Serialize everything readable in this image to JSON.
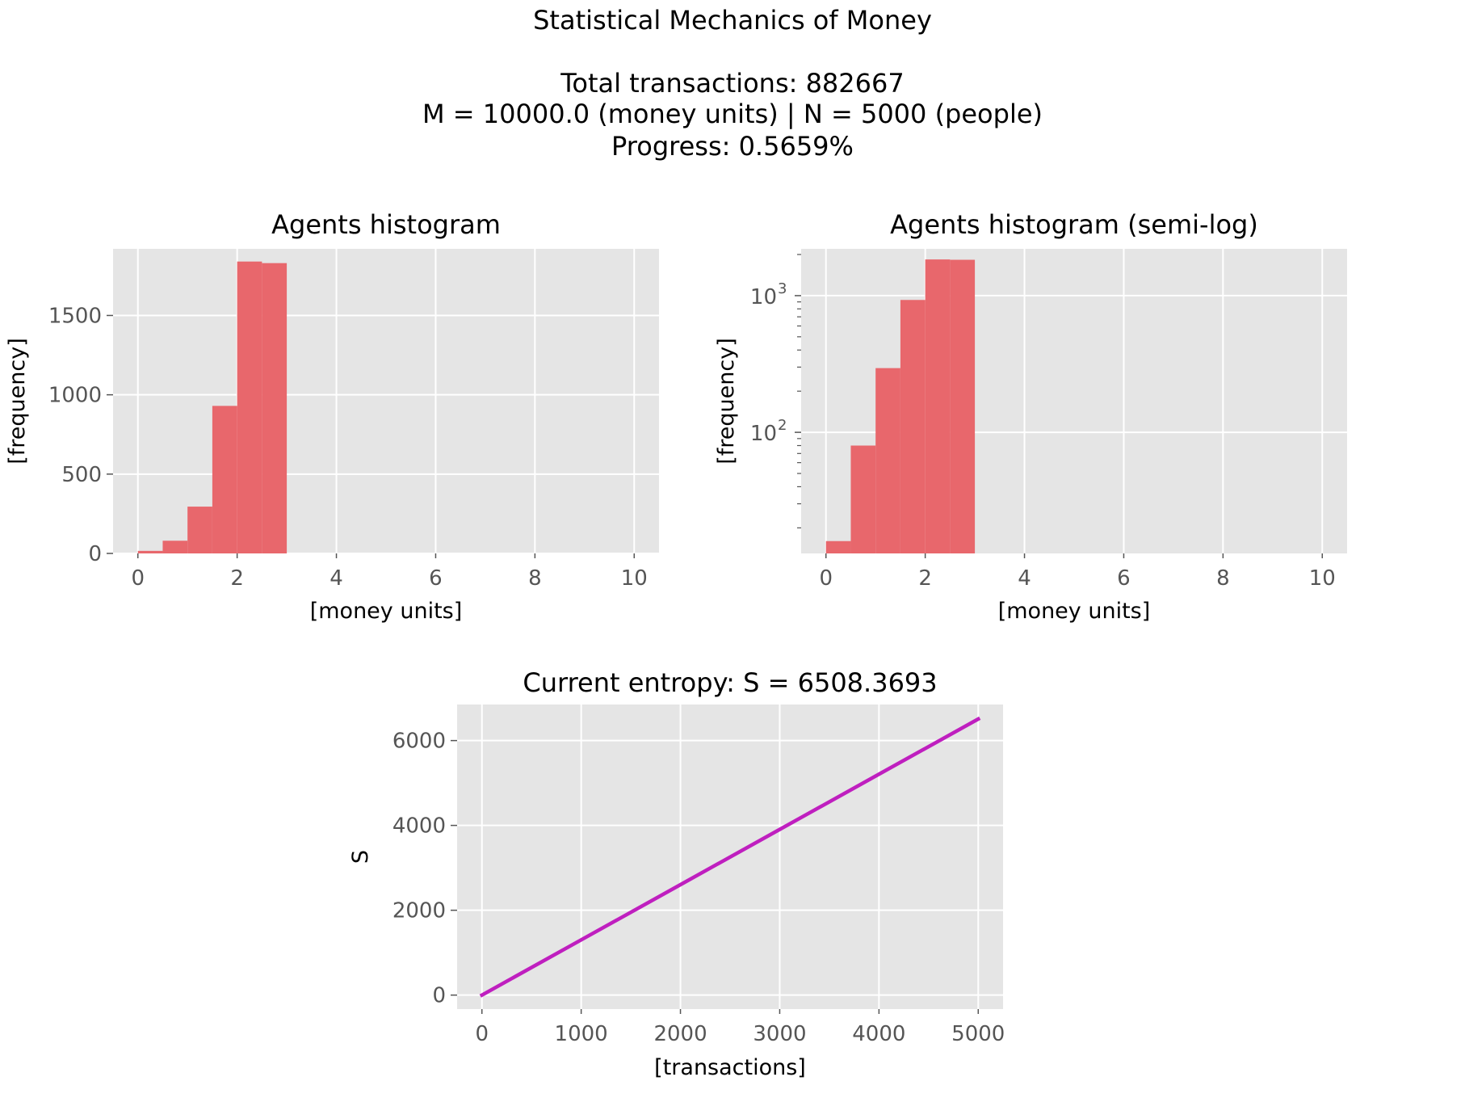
{
  "figure": {
    "suptitle_lines": [
      "Statistical Mechanics of Money",
      "",
      "Total transactions: 882667",
      "M = 10000.0 (money units)   |    N = 5000 (people)",
      "Progress: 0.5659%"
    ]
  },
  "colors": {
    "axes_background": "#e5e5e5",
    "grid": "#ffffff",
    "bar": "#e8676c",
    "line": "#bf1fbf",
    "tick_text": "#555555"
  },
  "chart_data": [
    {
      "id": "hist-linear",
      "type": "bar",
      "title": "Agents histogram",
      "xlabel": "[money units]",
      "ylabel": "[frequency]",
      "xlim": [
        -0.5,
        10.5
      ],
      "ylim": [
        0,
        1920
      ],
      "xticks": [
        0,
        2,
        4,
        6,
        8,
        10
      ],
      "yticks": [
        0,
        500,
        1000,
        1500
      ],
      "grid": true,
      "bin_edges": [
        0,
        0.5,
        1.0,
        1.5,
        2.0,
        2.5,
        3.0
      ],
      "values": [
        16,
        80,
        295,
        930,
        1840,
        1830
      ]
    },
    {
      "id": "hist-log",
      "type": "bar",
      "title": "Agents histogram (semi-log)",
      "xlabel": "[money units]",
      "ylabel": "[frequency]",
      "yscale": "log",
      "xlim": [
        -0.5,
        10.5
      ],
      "ylim": [
        13,
        2200
      ],
      "xticks": [
        0,
        2,
        4,
        6,
        8,
        10
      ],
      "yticks": [
        {
          "value": 100,
          "base": "10",
          "exp": "2"
        },
        {
          "value": 1000,
          "base": "10",
          "exp": "3"
        }
      ],
      "grid": true,
      "bin_edges": [
        0,
        0.5,
        1.0,
        1.5,
        2.0,
        2.5,
        3.0
      ],
      "values": [
        16,
        80,
        295,
        930,
        1840,
        1830
      ]
    },
    {
      "id": "entropy",
      "type": "line",
      "title": "Current entropy: S = 6508.3693",
      "xlabel": "[transactions]",
      "ylabel": "S",
      "xlim": [
        -250,
        5250
      ],
      "ylim": [
        -330,
        6850
      ],
      "xticks": [
        0,
        1000,
        2000,
        3000,
        4000,
        5000
      ],
      "yticks": [
        0,
        2000,
        4000,
        6000
      ],
      "grid": true,
      "series": [
        {
          "x": [
            0,
            1000,
            2000,
            3000,
            4000,
            5000
          ],
          "y": [
            0,
            1302,
            2603,
            3905,
            5207,
            6508.3693
          ]
        }
      ]
    }
  ]
}
